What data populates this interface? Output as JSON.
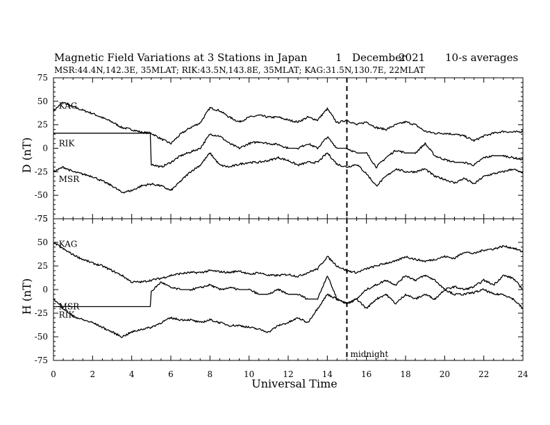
{
  "chart_data": {
    "type": "line",
    "title": "Magnetic Field Variations at 3 Stations in Japan",
    "date_day": "1",
    "date_month": "December",
    "date_year": "2021",
    "averaging": "10-s averages",
    "subtitle": "MSR:44.4N,142.3E, 35MLAT;  RIK:43.5N,143.8E, 35MLAT;  KAG:31.5N,130.7E, 22MLAT",
    "xlabel": "Universal Time",
    "xlim": [
      0,
      24
    ],
    "xticks": [
      0,
      2,
      4,
      6,
      8,
      10,
      12,
      14,
      16,
      18,
      20,
      22,
      24
    ],
    "midnight_ut": 15,
    "midnight_label": "midnight",
    "grid": false,
    "panels": [
      {
        "ylabel": "D (nT)",
        "ylim": [
          -75,
          75
        ],
        "yticks": [
          75,
          50,
          25,
          0,
          -25,
          -50,
          -75
        ],
        "station_labels": [
          {
            "text": "KAG",
            "x": 0.2,
            "y": 45
          },
          {
            "text": "RIK",
            "x": 0.2,
            "y": 5
          },
          {
            "text": "MSR",
            "x": 0.2,
            "y": -33
          }
        ],
        "series": [
          {
            "name": "KAG",
            "x": [
              0,
              0.5,
              1,
              2,
              3,
              3.5,
              4,
              4.5,
              5,
              5.5,
              6,
              6.5,
              7,
              7.5,
              8,
              8.5,
              9,
              9.5,
              10,
              10.5,
              11,
              11.5,
              12,
              12.5,
              13,
              13.5,
              14,
              14.5,
              15,
              15.5,
              16,
              16.5,
              17,
              17.5,
              18,
              18.5,
              19,
              19.5,
              20,
              20.5,
              21,
              21.5,
              22,
              22.5,
              23,
              23.5,
              24
            ],
            "values": [
              40,
              49,
              44,
              37,
              28,
              22,
              20,
              17,
              16,
              10,
              5,
              15,
              22,
              27,
              43,
              40,
              33,
              28,
              33,
              35,
              33,
              33,
              30,
              28,
              33,
              30,
              42,
              27,
              30,
              25,
              28,
              22,
              20,
              25,
              28,
              25,
              18,
              16,
              16,
              15,
              13,
              8,
              13,
              16,
              18,
              17,
              18
            ]
          },
          {
            "name": "RIK",
            "x": [
              0,
              1,
              2,
              3,
              4,
              4.95,
              5.0,
              5.5,
              6,
              6.5,
              7,
              7.5,
              8,
              8.5,
              9,
              9.5,
              10,
              10.5,
              11,
              11.5,
              12,
              12.5,
              13,
              13.5,
              14,
              14.5,
              15,
              15.5,
              16,
              16.5,
              17,
              17.5,
              18,
              18.5,
              19,
              19.5,
              20,
              20.5,
              21,
              21.5,
              22,
              22.5,
              23,
              23.5,
              24
            ],
            "values": [
              16,
              16,
              16,
              16,
              16,
              16,
              -17,
              -20,
              -15,
              -8,
              -4,
              0,
              15,
              13,
              5,
              0,
              5,
              7,
              5,
              4,
              0,
              0,
              5,
              0,
              12,
              0,
              0,
              -5,
              -5,
              -20,
              -10,
              -2,
              -5,
              -5,
              5,
              -8,
              -12,
              -15,
              -15,
              -18,
              -10,
              -8,
              -8,
              -10,
              -12
            ]
          },
          {
            "name": "MSR",
            "x": [
              0,
              0.5,
              1,
              2,
              3,
              3.5,
              4,
              4.5,
              5,
              5.5,
              6,
              6.5,
              7,
              7.5,
              8,
              8.5,
              9,
              9.5,
              10,
              10.5,
              11,
              11.5,
              12,
              12.5,
              13,
              13.5,
              14,
              14.5,
              15,
              15.5,
              16,
              16.5,
              17,
              17.5,
              18,
              18.5,
              19,
              19.5,
              20,
              20.5,
              21,
              21.5,
              22,
              22.5,
              23,
              23.5,
              24
            ],
            "values": [
              -25,
              -20,
              -25,
              -30,
              -40,
              -47,
              -45,
              -40,
              -38,
              -40,
              -45,
              -35,
              -25,
              -18,
              -5,
              -18,
              -20,
              -17,
              -15,
              -15,
              -13,
              -10,
              -13,
              -18,
              -15,
              -15,
              -5,
              -17,
              -20,
              -17,
              -27,
              -40,
              -30,
              -22,
              -25,
              -25,
              -22,
              -30,
              -33,
              -37,
              -32,
              -38,
              -30,
              -27,
              -25,
              -22,
              -27
            ]
          }
        ]
      },
      {
        "ylabel": "H (nT)",
        "ylim": [
          -75,
          75
        ],
        "yticks": [
          75,
          50,
          25,
          0,
          -25,
          -50,
          -75
        ],
        "station_labels": [
          {
            "text": "KAG",
            "x": 0.2,
            "y": 48
          },
          {
            "text": "MSR",
            "x": 0.2,
            "y": -18
          },
          {
            "text": "RIK",
            "x": 0.2,
            "y": -27
          }
        ],
        "series": [
          {
            "name": "KAG",
            "x": [
              0,
              0.5,
              1,
              1.5,
              2,
              2.5,
              3,
              3.5,
              4,
              4.5,
              5,
              5.5,
              6,
              6.5,
              7,
              7.5,
              8,
              8.5,
              9,
              9.5,
              10,
              10.5,
              11,
              11.5,
              12,
              12.5,
              13,
              13.5,
              14,
              14.5,
              15,
              15.5,
              16,
              16.5,
              17,
              17.5,
              18,
              18.5,
              19,
              19.5,
              20,
              20.5,
              21,
              21.5,
              22,
              22.5,
              23,
              23.5,
              24
            ],
            "values": [
              50,
              43,
              37,
              32,
              28,
              25,
              20,
              15,
              8,
              8,
              10,
              12,
              15,
              17,
              18,
              18,
              20,
              19,
              18,
              20,
              16,
              18,
              15,
              15,
              16,
              14,
              18,
              22,
              35,
              25,
              20,
              18,
              22,
              25,
              28,
              30,
              35,
              32,
              30,
              32,
              35,
              33,
              40,
              38,
              42,
              43,
              46,
              44,
              40
            ]
          },
          {
            "name": "RIK",
            "x": [
              0,
              1,
              2,
              3,
              4,
              4.95,
              5.0,
              5.5,
              6,
              6.5,
              7,
              7.5,
              8,
              8.5,
              9,
              9.5,
              10,
              10.5,
              11,
              11.5,
              12,
              12.5,
              13,
              13.5,
              14,
              14.5,
              15,
              15.5,
              16,
              16.5,
              17,
              17.5,
              18,
              18.5,
              19,
              19.5,
              20,
              20.5,
              21,
              21.5,
              22,
              22.5,
              23,
              23.5,
              24
            ],
            "values": [
              -18,
              -18,
              -18,
              -18,
              -18,
              -18,
              -2,
              8,
              2,
              0,
              0,
              2,
              5,
              0,
              2,
              0,
              0,
              -5,
              -5,
              0,
              -5,
              -5,
              -10,
              -10,
              15,
              -10,
              -15,
              -10,
              0,
              5,
              10,
              5,
              15,
              10,
              15,
              10,
              0,
              3,
              0,
              3,
              10,
              5,
              15,
              12,
              0
            ]
          },
          {
            "name": "MSR",
            "x": [
              0,
              0.5,
              1,
              1.5,
              2,
              2.5,
              3,
              3.5,
              4,
              4.5,
              5,
              5.5,
              6,
              6.5,
              7,
              7.5,
              8,
              8.5,
              9,
              9.5,
              10,
              10.5,
              11,
              11.5,
              12,
              12.5,
              13,
              13.5,
              14,
              14.5,
              15,
              15.5,
              16,
              16.5,
              17,
              17.5,
              18,
              18.5,
              19,
              19.5,
              20,
              20.5,
              21,
              21.5,
              22,
              22.5,
              23,
              23.5,
              24
            ],
            "values": [
              -10,
              -20,
              -28,
              -32,
              -35,
              -40,
              -45,
              -50,
              -45,
              -42,
              -40,
              -35,
              -30,
              -32,
              -32,
              -35,
              -32,
              -35,
              -38,
              -38,
              -40,
              -42,
              -45,
              -38,
              -35,
              -30,
              -35,
              -20,
              -5,
              -10,
              -15,
              -10,
              -20,
              -10,
              -5,
              -15,
              -5,
              -10,
              -5,
              -10,
              0,
              -5,
              -5,
              -3,
              0,
              -5,
              -5,
              -10,
              -20
            ]
          }
        ]
      }
    ]
  }
}
